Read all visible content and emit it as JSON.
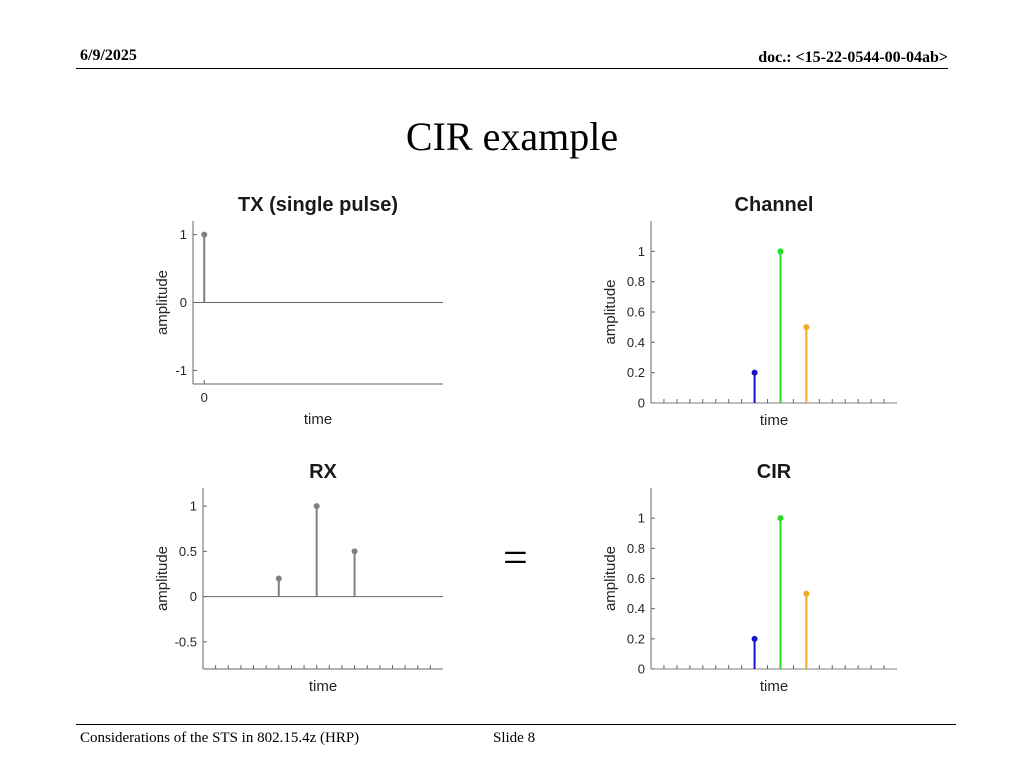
{
  "header": {
    "date": "6/9/2025",
    "doc": "doc.: <15-22-0544-00-04ab>"
  },
  "slide": {
    "title": "CIR example",
    "operator": "="
  },
  "footer": {
    "left": "Considerations of the STS in 802.15.4z (HRP)",
    "right": "Slide 8"
  },
  "colors": {
    "gray": "#808080",
    "blue": "#1414c8",
    "green": "#22dd22",
    "orange": "#eeaa22"
  },
  "chart_data": [
    {
      "id": "tx",
      "type": "stem",
      "title": "TX (single pulse)",
      "xlabel": "time",
      "ylabel": "amplitude",
      "ylim": [
        -1.2,
        1.2
      ],
      "yticks": [
        -1,
        0,
        1
      ],
      "ytick_labels": [
        "-1",
        "0",
        "1"
      ],
      "xlim": [
        -0.4,
        8.5
      ],
      "xticks": [
        0
      ],
      "xtick_labels": [
        "0"
      ],
      "baseline": 0,
      "box_bottom": true,
      "series": [
        {
          "x": [
            0
          ],
          "values": [
            1
          ],
          "color": "#808080"
        }
      ]
    },
    {
      "id": "channel",
      "type": "stem",
      "title": "Channel",
      "xlabel": "time",
      "ylabel": "amplitude",
      "ylim": [
        0,
        1.2
      ],
      "yticks": [
        0,
        0.2,
        0.4,
        0.6,
        0.8,
        1
      ],
      "ytick_labels": [
        "0",
        "0.2",
        "0.4",
        "0.6",
        "0.8",
        "1"
      ],
      "xlim": [
        0,
        19
      ],
      "xminor": 19,
      "baseline": 0,
      "box_bottom": false,
      "series": [
        {
          "x": [
            8
          ],
          "values": [
            0.2
          ],
          "color": "#1414c8"
        },
        {
          "x": [
            10
          ],
          "values": [
            1
          ],
          "color": "#22dd22"
        },
        {
          "x": [
            12
          ],
          "values": [
            0.5
          ],
          "color": "#eeaa22"
        }
      ]
    },
    {
      "id": "rx",
      "type": "stem",
      "title": "RX",
      "xlabel": "time",
      "ylabel": "amplitude",
      "ylim": [
        -0.8,
        1.2
      ],
      "yticks": [
        -0.5,
        0,
        0.5,
        1
      ],
      "ytick_labels": [
        "-0.5",
        "0",
        "0.5",
        "1"
      ],
      "xlim": [
        0,
        19
      ],
      "xminor": 19,
      "baseline": 0,
      "box_bottom": true,
      "series": [
        {
          "x": [
            6,
            9,
            12
          ],
          "values": [
            0.2,
            1,
            0.5
          ],
          "color": "#808080"
        }
      ]
    },
    {
      "id": "cir",
      "type": "stem",
      "title": "CIR",
      "xlabel": "time",
      "ylabel": "amplitude",
      "ylim": [
        0,
        1.2
      ],
      "yticks": [
        0,
        0.2,
        0.4,
        0.6,
        0.8,
        1
      ],
      "ytick_labels": [
        "0",
        "0.2",
        "0.4",
        "0.6",
        "0.8",
        "1"
      ],
      "xlim": [
        0,
        19
      ],
      "xminor": 19,
      "baseline": 0,
      "box_bottom": false,
      "series": [
        {
          "x": [
            8
          ],
          "values": [
            0.2
          ],
          "color": "#1414c8"
        },
        {
          "x": [
            10
          ],
          "values": [
            1
          ],
          "color": "#22dd22"
        },
        {
          "x": [
            12
          ],
          "values": [
            0.5
          ],
          "color": "#eeaa22"
        }
      ]
    }
  ]
}
